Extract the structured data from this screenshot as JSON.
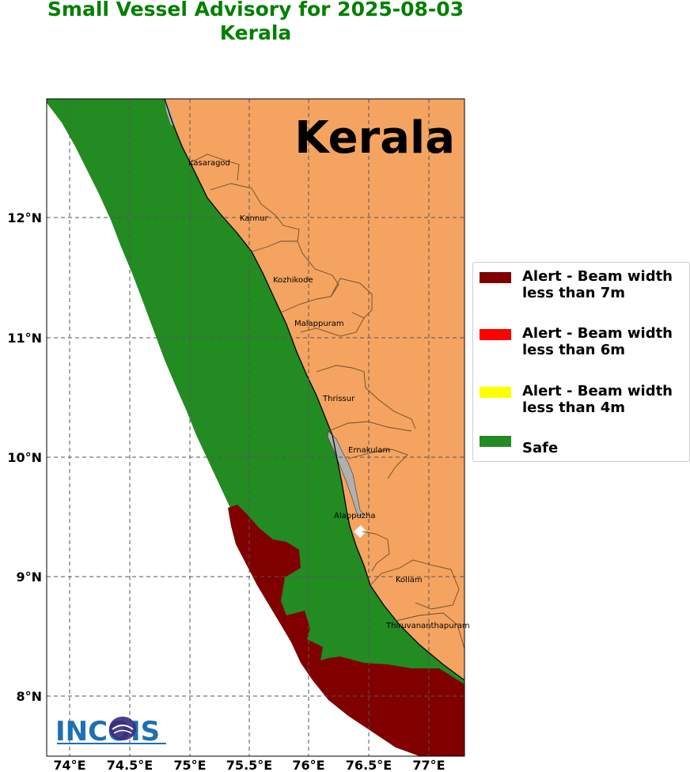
{
  "title": {
    "line1": "Small Vessel Advisory for 2025-08-03",
    "line2": "Kerala"
  },
  "map": {
    "region_label": "Kerala",
    "longitude_ticks": [
      "74°E",
      "74.5°E",
      "75°E",
      "75.5°E",
      "76°E",
      "76.5°E",
      "77°E"
    ],
    "latitude_ticks": [
      "12°N",
      "11°N",
      "10°N",
      "9°N",
      "8°N"
    ],
    "districts": [
      "Kasaragod",
      "Kannur",
      "Kozhikode",
      "Malappuram",
      "Thrissur",
      "Ernakulam",
      "Alappuzha",
      "Kollam",
      "Thiruvananthapuram"
    ],
    "colors": {
      "land": "#f4a460",
      "safe": "#228b22",
      "alert_7m": "#800000",
      "alert_6m": "#ff0000",
      "alert_4m": "#ffff00",
      "grid": "#555555"
    }
  },
  "legend": {
    "items": [
      {
        "label": "Alert - Beam width less than 7m",
        "color": "#800000"
      },
      {
        "label": "Alert - Beam width less than 6m",
        "color": "#ff0000"
      },
      {
        "label": "Alert - Beam width less than 4m",
        "color": "#ffff00"
      },
      {
        "label": "Safe",
        "color": "#228b22"
      }
    ]
  },
  "logo": {
    "text": "INCOIS",
    "icon": "incois-logo-icon"
  }
}
